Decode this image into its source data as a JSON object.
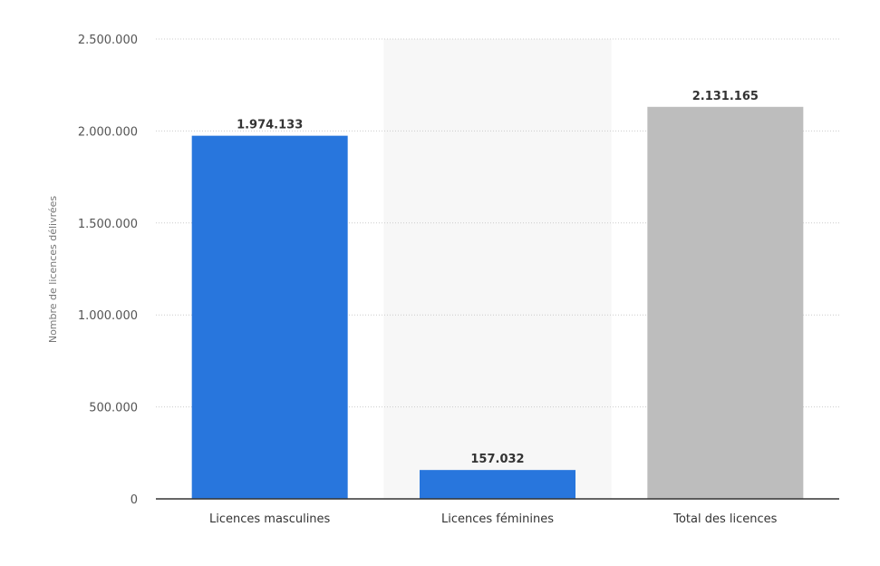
{
  "chart_data": {
    "type": "bar",
    "title": "",
    "xlabel": "",
    "ylabel": "Nombre de licences délivrées",
    "categories": [
      "Licences masculines",
      "Licences féminines",
      "Total des licences"
    ],
    "values": [
      1974133,
      157032,
      2131165
    ],
    "value_labels": [
      "1.974.133",
      "157.032",
      "2.131.165"
    ],
    "bar_colors": [
      "#2876dd",
      "#2876dd",
      "#bdbdbd"
    ],
    "highlight_background_color": "#f7f7f7",
    "highlighted_category_index": 1,
    "ylim": [
      0,
      2500000
    ],
    "yticks": [
      0,
      500000,
      1000000,
      1500000,
      2000000,
      2500000
    ],
    "ytick_labels": [
      "0",
      "500.000",
      "1.000.000",
      "1.500.000",
      "2.000.000",
      "2.500.000"
    ],
    "grid": true,
    "grid_style": "dotted",
    "legend": "none"
  }
}
